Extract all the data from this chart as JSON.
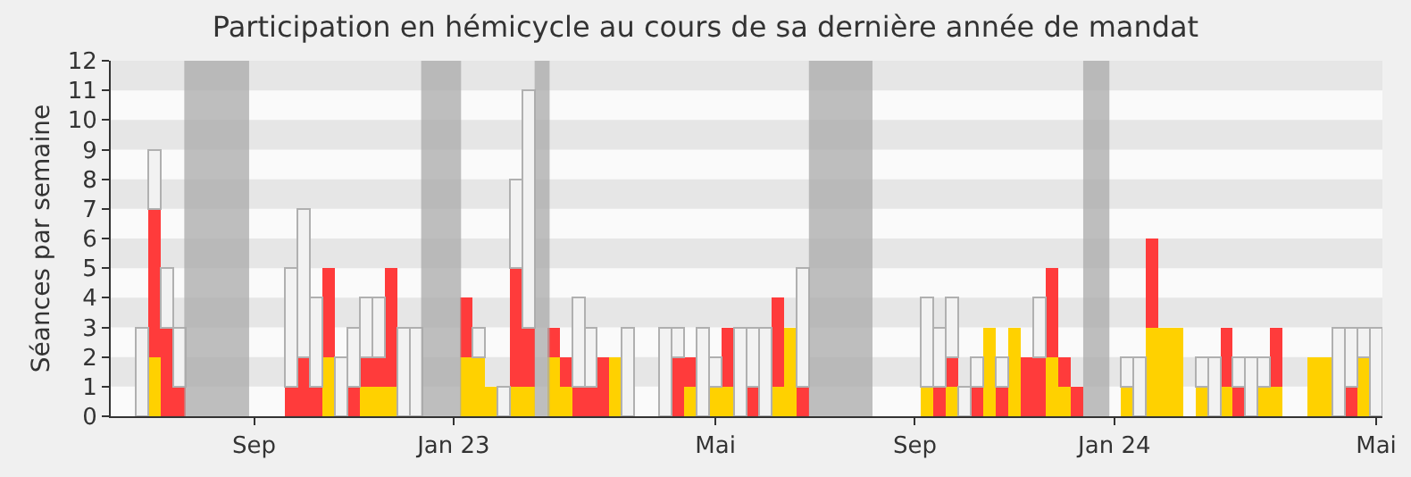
{
  "chart_data": {
    "type": "bar",
    "title": "Participation en hémicycle au cours de sa dernière année de mandat",
    "ylabel": "Séances par semaine",
    "stacked": true,
    "categories": [
      null,
      null,
      null,
      null,
      null,
      null,
      null,
      null,
      null,
      null,
      null,
      "Sep",
      null,
      null,
      null,
      null,
      null,
      null,
      null,
      null,
      null,
      null,
      null,
      null,
      null,
      null,
      null,
      "Jan 23",
      null,
      null,
      null,
      null,
      null,
      null,
      null,
      null,
      null,
      null,
      null,
      null,
      null,
      null,
      null,
      null,
      null,
      null,
      null,
      null,
      "Mai",
      null,
      null,
      null,
      null,
      null,
      null,
      null,
      null,
      null,
      null,
      null,
      null,
      null,
      null,
      null,
      "Sep",
      null,
      null,
      null,
      null,
      null,
      null,
      null,
      null,
      null,
      null,
      null,
      null,
      null,
      null,
      null,
      "Jan 24",
      null,
      null,
      null,
      null,
      null,
      null,
      null,
      null,
      null,
      null,
      null,
      null,
      null,
      null,
      null,
      null,
      null,
      null,
      null,
      null,
      "Mai"
    ],
    "series": [
      {
        "color": "#ffd100",
        "values": [
          null,
          null,
          null,
          2,
          null,
          null,
          null,
          null,
          null,
          null,
          null,
          null,
          null,
          null,
          null,
          null,
          null,
          2,
          null,
          null,
          1,
          1,
          1,
          null,
          null,
          null,
          null,
          null,
          2,
          2,
          1,
          null,
          1,
          1,
          null,
          2,
          1,
          null,
          null,
          null,
          2,
          null,
          null,
          null,
          null,
          null,
          1,
          null,
          1,
          1,
          null,
          null,
          null,
          1,
          3,
          null,
          null,
          null,
          null,
          null,
          null,
          null,
          null,
          null,
          null,
          1,
          null,
          1,
          null,
          null,
          3,
          null,
          3,
          null,
          null,
          2,
          1,
          null,
          null,
          null,
          null,
          1,
          null,
          3,
          3,
          3,
          null,
          1,
          null,
          1,
          null,
          null,
          1,
          1,
          null,
          null,
          2,
          2,
          null,
          null,
          2,
          null
        ]
      },
      {
        "color": "#ff3b3b",
        "values": [
          null,
          null,
          null,
          5,
          3,
          1,
          null,
          null,
          null,
          null,
          null,
          null,
          null,
          null,
          1,
          2,
          1,
          3,
          null,
          1,
          1,
          1,
          4,
          null,
          null,
          null,
          null,
          null,
          2,
          null,
          null,
          null,
          4,
          2,
          null,
          1,
          1,
          1,
          1,
          2,
          null,
          null,
          null,
          null,
          null,
          2,
          1,
          null,
          null,
          2,
          null,
          1,
          null,
          3,
          null,
          1,
          null,
          null,
          null,
          null,
          null,
          null,
          null,
          null,
          null,
          null,
          1,
          1,
          null,
          1,
          null,
          1,
          null,
          2,
          2,
          3,
          1,
          1,
          null,
          null,
          null,
          null,
          null,
          3,
          null,
          null,
          null,
          null,
          null,
          2,
          1,
          null,
          null,
          2,
          null,
          null,
          null,
          null,
          null,
          1,
          null,
          null
        ]
      },
      {
        "color": "#f2f2f2",
        "values": [
          null,
          null,
          3,
          2,
          2,
          2,
          null,
          null,
          null,
          null,
          null,
          null,
          null,
          null,
          4,
          5,
          3,
          null,
          2,
          2,
          2,
          2,
          null,
          3,
          3,
          null,
          null,
          null,
          null,
          1,
          null,
          1,
          3,
          8,
          null,
          null,
          null,
          3,
          2,
          null,
          null,
          3,
          null,
          null,
          3,
          1,
          null,
          3,
          1,
          null,
          3,
          2,
          3,
          null,
          null,
          4,
          null,
          null,
          null,
          null,
          null,
          null,
          null,
          null,
          null,
          3,
          2,
          2,
          1,
          1,
          null,
          1,
          null,
          null,
          2,
          null,
          null,
          null,
          null,
          null,
          null,
          1,
          2,
          null,
          null,
          null,
          null,
          1,
          2,
          null,
          1,
          2,
          1,
          null,
          null,
          null,
          null,
          null,
          3,
          2,
          1,
          3
        ]
      }
    ],
    "ylim": [
      0,
      12
    ],
    "yticks": [
      0,
      1,
      2,
      3,
      4,
      5,
      6,
      7,
      8,
      9,
      10,
      11,
      12
    ]
  }
}
